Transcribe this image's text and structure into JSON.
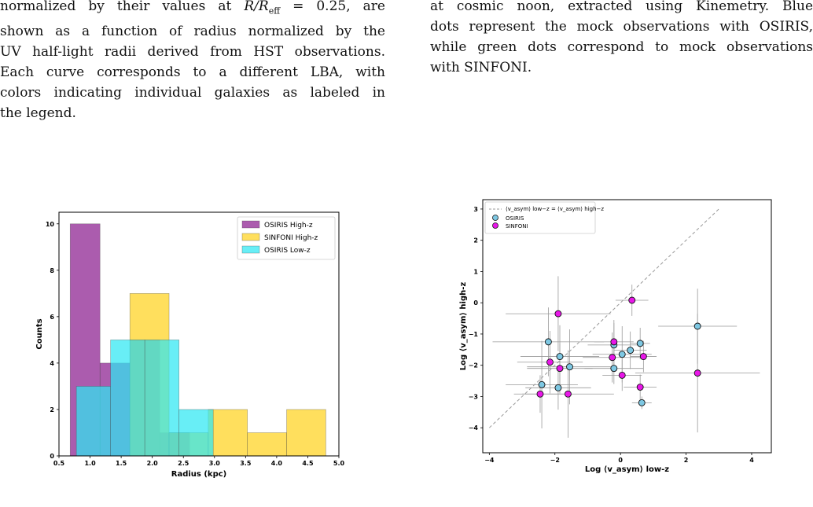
{
  "left_caption": {
    "lines": [
      "normalized by their values at R/R",
      "shown as a function of radius normalized by the",
      "UV half-light radii derived from HST observations.",
      "Each curve corresponds to a different LBA, with",
      "colors indicating individual galaxies as labeled in",
      "the legend."
    ],
    "line1_eff_sub": "eff",
    "line1_tail": " = 0.25, are"
  },
  "right_caption": {
    "lines": [
      "at cosmic noon, extracted using Kinemetry. Blue",
      "dots represent the mock observations with OSIRIS,",
      "while green dots correspond to mock observations",
      "with SINFONI."
    ]
  },
  "chart_data": [
    {
      "type": "bar",
      "subtype": "histogram",
      "xlabel": "Radius (kpc)",
      "ylabel": "Counts",
      "xlim": [
        0.5,
        5.0
      ],
      "ylim": [
        0,
        10.5
      ],
      "xticks": [
        "0.5",
        "1.0",
        "1.5",
        "2.0",
        "2.5",
        "3.0",
        "3.5",
        "4.0",
        "4.5",
        "5.0"
      ],
      "yticks": [
        "0",
        "2",
        "4",
        "6",
        "8",
        "10"
      ],
      "legend_position": "top-right",
      "series": [
        {
          "name": "OSIRIS High-z",
          "color": "#8b1d8f",
          "bins": [
            [
              0.68,
              1.16,
              10
            ],
            [
              1.16,
              1.64,
              4
            ],
            [
              1.64,
              2.12,
              5
            ],
            [
              2.12,
              2.6,
              1
            ]
          ]
        },
        {
          "name": "SINFONI High-z",
          "color": "#ffd21f",
          "bins": [
            [
              1.64,
              2.27,
              7
            ],
            [
              2.27,
              2.9,
              1
            ],
            [
              2.9,
              3.53,
              2
            ],
            [
              3.53,
              4.16,
              1
            ],
            [
              4.16,
              4.79,
              2
            ]
          ]
        },
        {
          "name": "OSIRIS Low-z",
          "color": "#2ee8f2",
          "bins": [
            [
              0.78,
              1.33,
              3
            ],
            [
              1.33,
              1.88,
              5
            ],
            [
              1.88,
              2.43,
              5
            ],
            [
              2.43,
              2.98,
              2
            ]
          ]
        }
      ]
    },
    {
      "type": "scatter",
      "xlabel": "Log ⟨v_asym⟩ low-z",
      "ylabel": "Log ⟨v_asym⟩ high-z",
      "xlim": [
        -4.2,
        4.6
      ],
      "ylim": [
        -4.8,
        3.3
      ],
      "xticks": [
        "−4",
        "−2",
        "0",
        "2",
        "4"
      ],
      "yticks": [
        "−4",
        "−3",
        "−2",
        "−1",
        "0",
        "1",
        "2",
        "3"
      ],
      "legend_position": "top-left",
      "legend_line_label": "⟨v_asym⟩ low−z = ⟨v_asym⟩ high−z",
      "identity_line": [
        [
          -4,
          -4
        ],
        [
          3,
          3
        ]
      ],
      "series": [
        {
          "name": "OSIRIS",
          "color": "#7ec8e3",
          "points": [
            {
              "x": -2.2,
              "y": -1.25,
              "xerr": 1.7,
              "yerr": 1.1
            },
            {
              "x": -1.85,
              "y": -1.72,
              "xerr": 1.2,
              "yerr": 1.0
            },
            {
              "x": -1.55,
              "y": -2.05,
              "xerr": 1.3,
              "yerr": 1.2
            },
            {
              "x": -2.4,
              "y": -2.62,
              "xerr": 1.1,
              "yerr": 1.4
            },
            {
              "x": -1.9,
              "y": -2.72,
              "xerr": 1.0,
              "yerr": 0.7
            },
            {
              "x": -0.2,
              "y": -1.35,
              "xerr": 0.8,
              "yerr": 0.8
            },
            {
              "x": 0.05,
              "y": -1.65,
              "xerr": 0.9,
              "yerr": 0.9
            },
            {
              "x": 0.3,
              "y": -1.52,
              "xerr": 0.5,
              "yerr": 0.6
            },
            {
              "x": 0.6,
              "y": -1.3,
              "xerr": 0.3,
              "yerr": 0.5
            },
            {
              "x": -0.2,
              "y": -2.1,
              "xerr": 0.9,
              "yerr": 0.5
            },
            {
              "x": 0.65,
              "y": -3.2,
              "xerr": 0.3,
              "yerr": 0.2
            },
            {
              "x": 2.35,
              "y": -0.75,
              "xerr": 1.2,
              "yerr": 1.2
            }
          ]
        },
        {
          "name": "SINFONI",
          "color": "#e817e8",
          "points": [
            {
              "x": -1.9,
              "y": -0.35,
              "xerr": 1.6,
              "yerr": 1.2
            },
            {
              "x": -2.15,
              "y": -1.9,
              "xerr": 1.0,
              "yerr": 1.0
            },
            {
              "x": -1.85,
              "y": -2.1,
              "xerr": 1.0,
              "yerr": 0.8
            },
            {
              "x": -2.45,
              "y": -2.92,
              "xerr": 0.8,
              "yerr": 0.6
            },
            {
              "x": -1.6,
              "y": -2.92,
              "xerr": 1.4,
              "yerr": 1.4
            },
            {
              "x": 0.35,
              "y": 0.08,
              "xerr": 0.5,
              "yerr": 0.5
            },
            {
              "x": -0.2,
              "y": -1.25,
              "xerr": 0.6,
              "yerr": 0.6
            },
            {
              "x": -0.25,
              "y": -1.75,
              "xerr": 0.9,
              "yerr": 0.8
            },
            {
              "x": 0.05,
              "y": -2.32,
              "xerr": 0.6,
              "yerr": 0.5
            },
            {
              "x": 0.6,
              "y": -2.7,
              "xerr": 0.5,
              "yerr": 0.4
            },
            {
              "x": 0.7,
              "y": -1.72,
              "xerr": 0.4,
              "yerr": 0.5
            },
            {
              "x": 2.35,
              "y": -2.25,
              "xerr": 1.9,
              "yerr": 1.9
            }
          ]
        }
      ]
    }
  ]
}
